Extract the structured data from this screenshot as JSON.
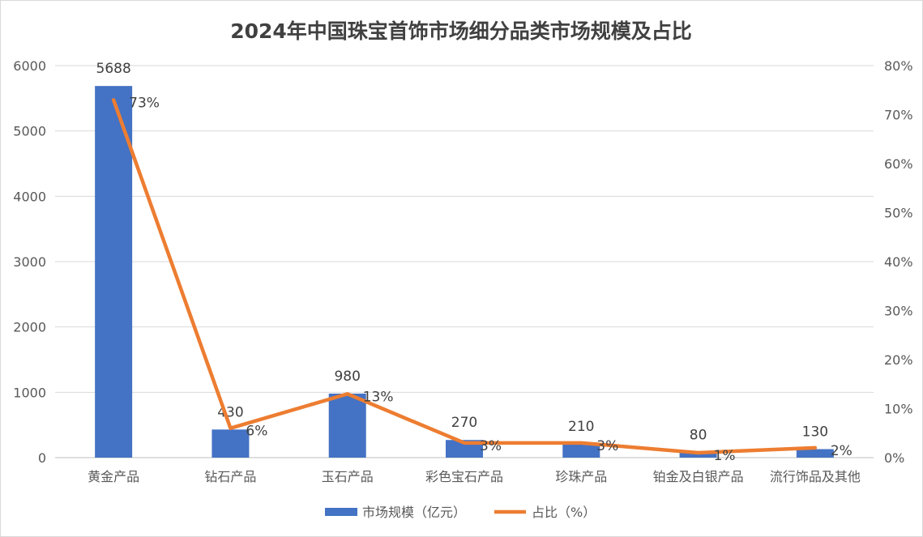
{
  "chart_data": {
    "type": "bar+line",
    "title": "2024年中国珠宝首饰市场细分品类市场规模及占比",
    "categories": [
      "黄金产品",
      "钻石产品",
      "玉石产品",
      "彩色宝石产品",
      "珍珠产品",
      "铂金及白银产品",
      "流行饰品及其他"
    ],
    "series": [
      {
        "name": "市场规模（亿元）",
        "type": "bar",
        "axis": "left",
        "color": "#4472C4",
        "values": [
          5688,
          430,
          980,
          270,
          210,
          80,
          130
        ],
        "labels": [
          "5688",
          "430",
          "980",
          "270",
          "210",
          "80",
          "130"
        ]
      },
      {
        "name": "占比（%）",
        "type": "line",
        "axis": "right",
        "color": "#ED7D31",
        "values": [
          73,
          6,
          13,
          3,
          3,
          1,
          2
        ],
        "labels": [
          "73%",
          "6%",
          "13%",
          "3%",
          "3%",
          "1%",
          "2%"
        ]
      }
    ],
    "y_left": {
      "range": [
        0,
        6000
      ],
      "ticks": [
        "0",
        "1000",
        "2000",
        "3000",
        "4000",
        "5000",
        "6000"
      ]
    },
    "y_right": {
      "range": [
        0,
        80
      ],
      "ticks": [
        "0%",
        "10%",
        "20%",
        "30%",
        "40%",
        "50%",
        "60%",
        "70%",
        "80%"
      ]
    },
    "grid": true,
    "legend": "bottom"
  }
}
